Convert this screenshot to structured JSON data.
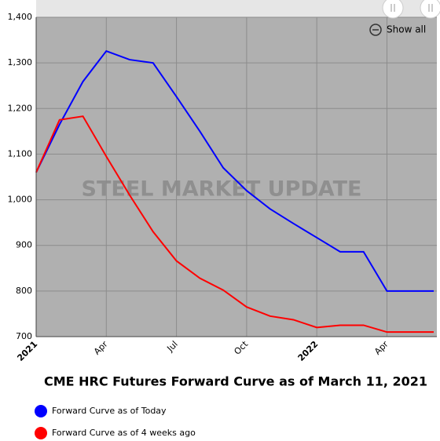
{
  "chart_data": {
    "type": "line",
    "title": "CME HRC Futures Forward Curve as of March 11, 2021",
    "watermark": "STEEL MARKET UPDATE",
    "reset_button": "Show all",
    "x": [
      "2021-01",
      "2021-02",
      "2021-03",
      "2021-04",
      "2021-05",
      "2021-06",
      "2021-07",
      "2021-08",
      "2021-09",
      "2021-10",
      "2021-11",
      "2021-12",
      "2022-01",
      "2022-02",
      "2022-03",
      "2022-04",
      "2022-05",
      "2022-06"
    ],
    "series": [
      {
        "name": "Forward Curve as of Today",
        "color": "#0000ff",
        "values": [
          1060,
          1165,
          1259,
          1326,
          1307,
          1300,
          1226,
          1150,
          1070,
          1020,
          980,
          948,
          917,
          886,
          886,
          800,
          800,
          800
        ]
      },
      {
        "name": "Forward Curve as of 4 weeks ago",
        "color": "#ff0000",
        "values": [
          1060,
          1175,
          1183,
          1095,
          1010,
          930,
          866,
          828,
          802,
          765,
          745,
          737,
          720,
          725,
          725,
          710,
          710,
          710
        ]
      }
    ],
    "xlim": [
      "2021-01",
      "2022-06"
    ],
    "xticks": [
      {
        "value": "2021-01",
        "label": "2021"
      },
      {
        "value": "2021-04",
        "label": "Apr"
      },
      {
        "value": "2021-07",
        "label": "Jul"
      },
      {
        "value": "2021-10",
        "label": "Oct"
      },
      {
        "value": "2022-01",
        "label": "2022"
      },
      {
        "value": "2022-04",
        "label": "Apr"
      }
    ],
    "ylim": [
      700,
      1400
    ],
    "yticks": [
      700,
      800,
      900,
      {
        "value": 1000,
        "label": "1,000"
      },
      {
        "value": 1100,
        "label": "1,100"
      },
      {
        "value": 1200,
        "label": "1,200"
      },
      {
        "value": 1300,
        "label": "1,300"
      },
      {
        "value": 1400,
        "label": "1,400"
      }
    ],
    "grid": true
  }
}
